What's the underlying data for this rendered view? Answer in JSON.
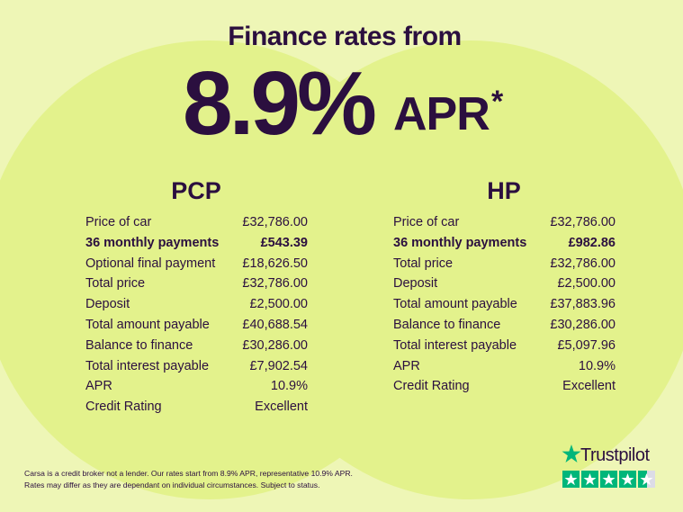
{
  "header": {
    "title": "Finance rates from",
    "rate": "8.9%",
    "unit": "APR",
    "footnote_mark": "*"
  },
  "tables": [
    {
      "heading": "PCP",
      "rows": [
        {
          "label": "Price of car",
          "value": "£32,786.00"
        },
        {
          "label": "36 monthly payments",
          "value": "£543.39",
          "bold": true
        },
        {
          "label": "Optional final payment",
          "value": "£18,626.50"
        },
        {
          "label": "Total price",
          "value": "£32,786.00"
        },
        {
          "label": "Deposit",
          "value": "£2,500.00"
        },
        {
          "label": "Total amount payable",
          "value": "£40,688.54"
        },
        {
          "label": "Balance to finance",
          "value": "£30,286.00"
        },
        {
          "label": "Total interest payable",
          "value": "£7,902.54"
        },
        {
          "label": "APR",
          "value": "10.9%"
        },
        {
          "label": "Credit Rating",
          "value": "Excellent"
        }
      ]
    },
    {
      "heading": "HP",
      "rows": [
        {
          "label": "Price of car",
          "value": "£32,786.00"
        },
        {
          "label": "36 monthly payments",
          "value": "£982.86",
          "bold": true
        },
        {
          "label": "Total price",
          "value": "£32,786.00"
        },
        {
          "label": "Deposit",
          "value": "£2,500.00"
        },
        {
          "label": "Total amount payable",
          "value": "£37,883.96"
        },
        {
          "label": "Balance to finance",
          "value": "£30,286.00"
        },
        {
          "label": "Total interest payable",
          "value": "£5,097.96"
        },
        {
          "label": "APR",
          "value": "10.9%"
        },
        {
          "label": "Credit Rating",
          "value": "Excellent"
        }
      ]
    }
  ],
  "footer": {
    "disclaimer": [
      "Carsa is a credit broker not a lender. Our rates start from 8.9% APR, representative 10.9% APR.",
      "Rates may differ as they are dependant on individual circumstances. Subject to status."
    ],
    "trustpilot": "Trustpilot"
  }
}
